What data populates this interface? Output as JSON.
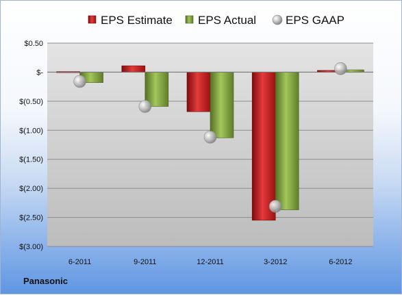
{
  "company": "Panasonic",
  "chart_data": {
    "type": "bar",
    "categories": [
      "6-2011",
      "9-2011",
      "12-2011",
      "3-2012",
      "6-2012"
    ],
    "series": [
      {
        "name": "EPS Estimate",
        "kind": "bar",
        "color": "#cc1f1f",
        "values": [
          0.01,
          0.11,
          -0.68,
          -2.55,
          0.03
        ]
      },
      {
        "name": "EPS Actual",
        "kind": "bar",
        "color": "#7da63a",
        "values": [
          -0.18,
          -0.59,
          -1.13,
          -2.37,
          0.04
        ]
      },
      {
        "name": "EPS GAAP",
        "kind": "scatter",
        "color": "#b0b0b0",
        "values": [
          -0.16,
          -0.59,
          -1.12,
          -2.31,
          0.06
        ]
      }
    ],
    "ylim": [
      -3.0,
      0.5
    ],
    "yticks": [
      0.5,
      0,
      -0.5,
      -1.0,
      -1.5,
      -2.0,
      -2.5,
      -3.0
    ],
    "ytick_labels": [
      "$0.50",
      "$-",
      "$(0.50)",
      "$(1.00)",
      "$(1.50)",
      "$(2.00)",
      "$(2.50)",
      "$(3.00)"
    ],
    "grid": true,
    "legend": "top"
  }
}
